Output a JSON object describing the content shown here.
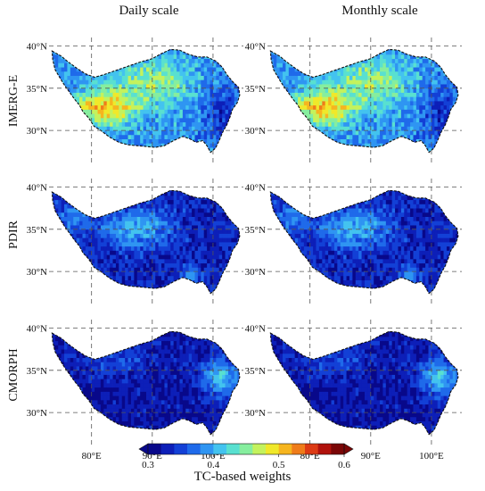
{
  "columns": [
    {
      "title": "Daily scale"
    },
    {
      "title": "Monthly scale"
    }
  ],
  "rows": [
    {
      "label": "IMERG-E"
    },
    {
      "label": "PDIR"
    },
    {
      "label": "CMORPH"
    }
  ],
  "lat_ticks": [
    "40°N",
    "35°N",
    "30°N"
  ],
  "lon_ticks": [
    "80°E",
    "90°E",
    "100°E"
  ],
  "colorbar": {
    "title": "TC-based weights",
    "ticks": [
      "0.3",
      "0.4",
      "0.5",
      "0.6"
    ],
    "min": 0.3,
    "max": 0.6,
    "extend": "both",
    "colors": [
      "#08088a",
      "#0d1fb8",
      "#1340d6",
      "#1f6aea",
      "#2f95f2",
      "#43c3ef",
      "#59e0d0",
      "#86ee9e",
      "#c4f25d",
      "#f0e82a",
      "#f6b51f",
      "#ef7c1a",
      "#dc3a14",
      "#b0120c",
      "#7a0606"
    ]
  },
  "panels": [
    {
      "row": 0,
      "col": 0,
      "lat_labels": true,
      "lon_labels": false,
      "pattern": "imerg"
    },
    {
      "row": 0,
      "col": 1,
      "lat_labels": true,
      "lon_labels": false,
      "pattern": "imerg"
    },
    {
      "row": 1,
      "col": 0,
      "lat_labels": true,
      "lon_labels": false,
      "pattern": "pdir"
    },
    {
      "row": 1,
      "col": 1,
      "lat_labels": true,
      "lon_labels": false,
      "pattern": "pdir"
    },
    {
      "row": 2,
      "col": 0,
      "lat_labels": true,
      "lon_labels": true,
      "pattern": "cmorph"
    },
    {
      "row": 2,
      "col": 1,
      "lat_labels": true,
      "lon_labels": true,
      "pattern": "cmorph"
    }
  ]
}
